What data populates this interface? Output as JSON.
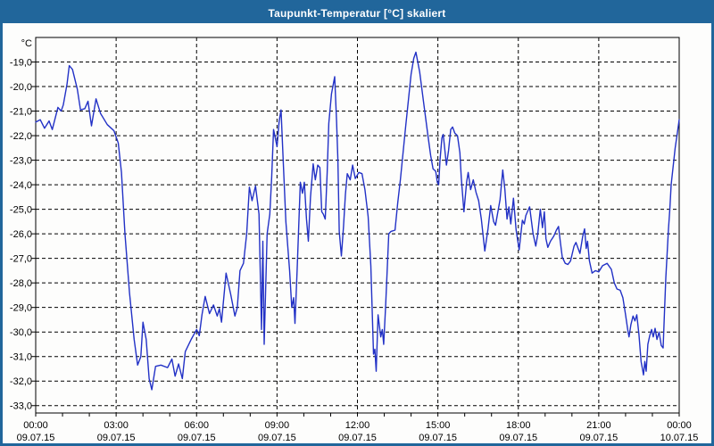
{
  "window": {
    "title": "Taupunkt-Temperatur [°C] skaliert"
  },
  "colors": {
    "titlebar_bg": "#21669b",
    "window_border": "#21669b",
    "title_text": "#ffffff",
    "line": "#2231c6",
    "grid": "#000000",
    "label_text": "#000000",
    "plot_bg": "#ffffff"
  },
  "chart_data": {
    "type": "line",
    "title": "Taupunkt-Temperatur [°C] skaliert",
    "y_unit": "°C",
    "grid_style": "dashed",
    "legend": "none",
    "x_axis": {
      "range_hours": [
        0,
        24
      ],
      "gridline_interval_hours": 3,
      "minor_tick_interval_hours": 1,
      "ticks": [
        {
          "hour": 0,
          "time": "00:00",
          "date": "09.07.15"
        },
        {
          "hour": 3,
          "time": "03:00",
          "date": "09.07.15"
        },
        {
          "hour": 6,
          "time": "06:00",
          "date": "09.07.15"
        },
        {
          "hour": 9,
          "time": "09:00",
          "date": "09.07.15"
        },
        {
          "hour": 12,
          "time": "12:00",
          "date": "09.07.15"
        },
        {
          "hour": 15,
          "time": "15:00",
          "date": "09.07.15"
        },
        {
          "hour": 18,
          "time": "18:00",
          "date": "09.07.15"
        },
        {
          "hour": 21,
          "time": "21:00",
          "date": "09.07.15"
        },
        {
          "hour": 24,
          "time": "00:00",
          "date": "10.07.15"
        }
      ]
    },
    "y_axis": {
      "range": [
        -33.3,
        -18.0
      ],
      "ticks": [
        {
          "value": -19,
          "label": "-19,0"
        },
        {
          "value": -20,
          "label": "-20,0"
        },
        {
          "value": -21,
          "label": "-21,0"
        },
        {
          "value": -22,
          "label": "-22,0"
        },
        {
          "value": -23,
          "label": "-23,0"
        },
        {
          "value": -24,
          "label": "-24,0"
        },
        {
          "value": -25,
          "label": "-25,0"
        },
        {
          "value": -26,
          "label": "-26,0"
        },
        {
          "value": -27,
          "label": "-27,0"
        },
        {
          "value": -28,
          "label": "-28,0"
        },
        {
          "value": -29,
          "label": "-29,0"
        },
        {
          "value": -30,
          "label": "-30,0"
        },
        {
          "value": -31,
          "label": "-31,0"
        },
        {
          "value": -32,
          "label": "-32,0"
        },
        {
          "value": -33,
          "label": "-33,0"
        }
      ]
    },
    "series": [
      {
        "name": "Taupunkt-Temperatur",
        "color": "#2231c6",
        "points": [
          [
            0,
            -21.45
          ],
          [
            0.17,
            -21.35
          ],
          [
            0.33,
            -21.7
          ],
          [
            0.5,
            -21.4
          ],
          [
            0.62,
            -21.75
          ],
          [
            0.83,
            -20.85
          ],
          [
            0.95,
            -21.0
          ],
          [
            1.03,
            -20.75
          ],
          [
            1.17,
            -19.9
          ],
          [
            1.25,
            -19.15
          ],
          [
            1.37,
            -19.3
          ],
          [
            1.55,
            -20.1
          ],
          [
            1.67,
            -20.95
          ],
          [
            1.83,
            -20.9
          ],
          [
            1.95,
            -20.6
          ],
          [
            2.08,
            -21.6
          ],
          [
            2.25,
            -20.5
          ],
          [
            2.42,
            -21.1
          ],
          [
            2.67,
            -21.55
          ],
          [
            2.92,
            -21.8
          ],
          [
            3.08,
            -22.3
          ],
          [
            3.2,
            -23.5
          ],
          [
            3.33,
            -26.0
          ],
          [
            3.5,
            -28.4
          ],
          [
            3.67,
            -30.3
          ],
          [
            3.8,
            -31.35
          ],
          [
            3.92,
            -31.0
          ],
          [
            4.0,
            -29.6
          ],
          [
            4.12,
            -30.3
          ],
          [
            4.23,
            -31.9
          ],
          [
            4.33,
            -32.35
          ],
          [
            4.47,
            -31.4
          ],
          [
            4.67,
            -31.35
          ],
          [
            4.92,
            -31.45
          ],
          [
            5.08,
            -31.1
          ],
          [
            5.2,
            -31.8
          ],
          [
            5.33,
            -31.3
          ],
          [
            5.47,
            -31.9
          ],
          [
            5.58,
            -30.8
          ],
          [
            5.8,
            -30.3
          ],
          [
            6.0,
            -29.9
          ],
          [
            6.1,
            -30.15
          ],
          [
            6.2,
            -29.3
          ],
          [
            6.32,
            -28.55
          ],
          [
            6.48,
            -29.25
          ],
          [
            6.63,
            -28.9
          ],
          [
            6.77,
            -29.35
          ],
          [
            6.85,
            -29.05
          ],
          [
            6.93,
            -29.6
          ],
          [
            7.1,
            -27.6
          ],
          [
            7.27,
            -28.45
          ],
          [
            7.43,
            -29.35
          ],
          [
            7.52,
            -29.0
          ],
          [
            7.62,
            -27.5
          ],
          [
            7.75,
            -27.2
          ],
          [
            7.87,
            -26.0
          ],
          [
            7.97,
            -24.1
          ],
          [
            8.07,
            -24.65
          ],
          [
            8.2,
            -24.05
          ],
          [
            8.33,
            -25.2
          ],
          [
            8.42,
            -29.9
          ],
          [
            8.47,
            -26.3
          ],
          [
            8.52,
            -30.5
          ],
          [
            8.63,
            -26.0
          ],
          [
            8.73,
            -25.2
          ],
          [
            8.8,
            -23.7
          ],
          [
            8.87,
            -21.75
          ],
          [
            9.0,
            -22.45
          ],
          [
            9.08,
            -21.4
          ],
          [
            9.15,
            -20.95
          ],
          [
            9.23,
            -23.0
          ],
          [
            9.33,
            -25.5
          ],
          [
            9.47,
            -27.5
          ],
          [
            9.55,
            -29.0
          ],
          [
            9.62,
            -28.6
          ],
          [
            9.67,
            -29.65
          ],
          [
            9.75,
            -27.5
          ],
          [
            9.87,
            -23.9
          ],
          [
            9.95,
            -24.35
          ],
          [
            10.02,
            -23.9
          ],
          [
            10.1,
            -25.4
          ],
          [
            10.17,
            -26.3
          ],
          [
            10.25,
            -24.5
          ],
          [
            10.35,
            -23.15
          ],
          [
            10.43,
            -23.8
          ],
          [
            10.52,
            -23.2
          ],
          [
            10.6,
            -23.3
          ],
          [
            10.67,
            -25.1
          ],
          [
            10.73,
            -25.2
          ],
          [
            10.8,
            -25.4
          ],
          [
            10.87,
            -23.5
          ],
          [
            10.93,
            -21.5
          ],
          [
            11.03,
            -20.3
          ],
          [
            11.15,
            -19.6
          ],
          [
            11.22,
            -21.4
          ],
          [
            11.27,
            -23.0
          ],
          [
            11.32,
            -25.9
          ],
          [
            11.4,
            -26.9
          ],
          [
            11.48,
            -25.7
          ],
          [
            11.55,
            -24.4
          ],
          [
            11.62,
            -23.55
          ],
          [
            11.73,
            -23.8
          ],
          [
            11.82,
            -23.2
          ],
          [
            11.92,
            -23.75
          ],
          [
            12.05,
            -23.5
          ],
          [
            12.17,
            -23.55
          ],
          [
            12.28,
            -24.2
          ],
          [
            12.4,
            -25.3
          ],
          [
            12.5,
            -27.3
          ],
          [
            12.6,
            -30.9
          ],
          [
            12.65,
            -30.7
          ],
          [
            12.7,
            -31.6
          ],
          [
            12.77,
            -29.3
          ],
          [
            12.87,
            -30.2
          ],
          [
            12.93,
            -29.9
          ],
          [
            12.98,
            -30.5
          ],
          [
            13.05,
            -29.0
          ],
          [
            13.17,
            -26.0
          ],
          [
            13.25,
            -25.9
          ],
          [
            13.4,
            -25.85
          ],
          [
            13.5,
            -24.75
          ],
          [
            13.6,
            -23.8
          ],
          [
            13.7,
            -22.7
          ],
          [
            13.8,
            -21.6
          ],
          [
            13.9,
            -20.55
          ],
          [
            14.0,
            -19.5
          ],
          [
            14.1,
            -18.85
          ],
          [
            14.18,
            -18.6
          ],
          [
            14.32,
            -19.4
          ],
          [
            14.48,
            -20.75
          ],
          [
            14.63,
            -22.0
          ],
          [
            14.73,
            -22.8
          ],
          [
            14.82,
            -23.35
          ],
          [
            14.92,
            -23.45
          ],
          [
            14.98,
            -23.9
          ],
          [
            15.03,
            -24.0
          ],
          [
            15.08,
            -23.0
          ],
          [
            15.15,
            -22.1
          ],
          [
            15.2,
            -21.95
          ],
          [
            15.32,
            -23.2
          ],
          [
            15.4,
            -22.6
          ],
          [
            15.48,
            -21.75
          ],
          [
            15.55,
            -21.65
          ],
          [
            15.63,
            -21.9
          ],
          [
            15.73,
            -22.0
          ],
          [
            15.82,
            -22.7
          ],
          [
            15.87,
            -23.7
          ],
          [
            15.97,
            -25.1
          ],
          [
            16.07,
            -23.9
          ],
          [
            16.13,
            -23.5
          ],
          [
            16.22,
            -24.2
          ],
          [
            16.32,
            -23.8
          ],
          [
            16.42,
            -24.3
          ],
          [
            16.52,
            -24.65
          ],
          [
            16.62,
            -25.4
          ],
          [
            16.75,
            -26.7
          ],
          [
            16.87,
            -25.8
          ],
          [
            16.97,
            -24.85
          ],
          [
            17.08,
            -25.5
          ],
          [
            17.15,
            -25.65
          ],
          [
            17.32,
            -24.6
          ],
          [
            17.42,
            -23.4
          ],
          [
            17.5,
            -24.2
          ],
          [
            17.58,
            -25.4
          ],
          [
            17.65,
            -24.9
          ],
          [
            17.72,
            -25.6
          ],
          [
            17.82,
            -24.55
          ],
          [
            17.92,
            -25.85
          ],
          [
            18.03,
            -26.65
          ],
          [
            18.15,
            -25.45
          ],
          [
            18.22,
            -25.6
          ],
          [
            18.28,
            -25.25
          ],
          [
            18.42,
            -24.9
          ],
          [
            18.55,
            -26.0
          ],
          [
            18.65,
            -26.5
          ],
          [
            18.72,
            -26.05
          ],
          [
            18.82,
            -25.0
          ],
          [
            18.9,
            -25.75
          ],
          [
            18.97,
            -25.1
          ],
          [
            19.03,
            -26.2
          ],
          [
            19.1,
            -26.55
          ],
          [
            19.2,
            -26.3
          ],
          [
            19.32,
            -26.1
          ],
          [
            19.42,
            -25.85
          ],
          [
            19.5,
            -25.7
          ],
          [
            19.57,
            -26.35
          ],
          [
            19.64,
            -26.95
          ],
          [
            19.75,
            -27.2
          ],
          [
            19.85,
            -27.25
          ],
          [
            19.95,
            -27.1
          ],
          [
            20.08,
            -26.5
          ],
          [
            20.15,
            -26.35
          ],
          [
            20.3,
            -26.8
          ],
          [
            20.4,
            -26.1
          ],
          [
            20.47,
            -25.8
          ],
          [
            20.53,
            -26.6
          ],
          [
            20.58,
            -26.3
          ],
          [
            20.65,
            -27.1
          ],
          [
            20.75,
            -27.6
          ],
          [
            20.87,
            -27.5
          ],
          [
            21.0,
            -27.55
          ],
          [
            21.14,
            -27.3
          ],
          [
            21.31,
            -27.2
          ],
          [
            21.47,
            -27.45
          ],
          [
            21.58,
            -28.0
          ],
          [
            21.68,
            -28.25
          ],
          [
            21.8,
            -28.3
          ],
          [
            21.9,
            -28.6
          ],
          [
            22.0,
            -29.3
          ],
          [
            22.08,
            -29.9
          ],
          [
            22.13,
            -30.2
          ],
          [
            22.2,
            -29.7
          ],
          [
            22.28,
            -29.35
          ],
          [
            22.35,
            -29.55
          ],
          [
            22.42,
            -29.3
          ],
          [
            22.5,
            -30.1
          ],
          [
            22.58,
            -31.2
          ],
          [
            22.63,
            -31.5
          ],
          [
            22.67,
            -31.75
          ],
          [
            22.72,
            -31.2
          ],
          [
            22.77,
            -31.6
          ],
          [
            22.83,
            -30.5
          ],
          [
            22.9,
            -30.15
          ],
          [
            22.97,
            -29.9
          ],
          [
            23.03,
            -30.2
          ],
          [
            23.1,
            -29.85
          ],
          [
            23.17,
            -30.3
          ],
          [
            23.25,
            -30.0
          ],
          [
            23.33,
            -30.55
          ],
          [
            23.4,
            -30.65
          ],
          [
            23.45,
            -29.2
          ],
          [
            23.5,
            -27.8
          ],
          [
            23.55,
            -26.8
          ],
          [
            23.6,
            -25.8
          ],
          [
            23.65,
            -25.0
          ],
          [
            23.7,
            -24.0
          ],
          [
            23.78,
            -23.2
          ],
          [
            23.85,
            -22.5
          ],
          [
            23.93,
            -21.9
          ],
          [
            24.0,
            -21.35
          ]
        ]
      }
    ]
  }
}
